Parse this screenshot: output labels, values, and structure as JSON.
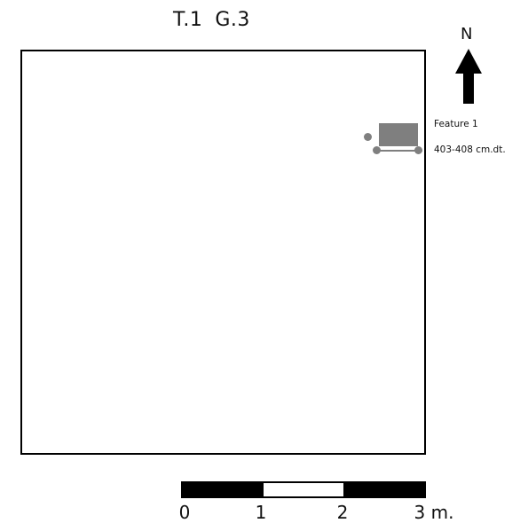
{
  "title": {
    "trench": "T.1",
    "grid": "G.3"
  },
  "north": {
    "label": "N"
  },
  "feature": {
    "name": "Feature 1",
    "depth": "403-408 cm.dt."
  },
  "scale": {
    "ticks": [
      "0",
      "1",
      "2",
      "3 m."
    ]
  },
  "colors": {
    "outline": "#000000",
    "feature_fill": "#7f7f7f"
  }
}
